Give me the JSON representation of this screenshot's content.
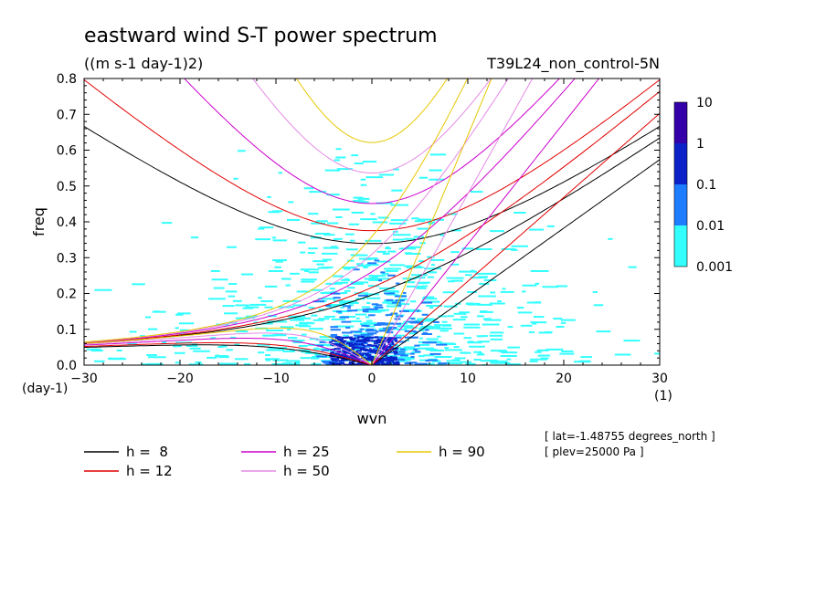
{
  "chart_data": {
    "type": "heatmap",
    "title": "eastward wind S-T power spectrum",
    "subtitle": "((m s-1 day-1)2)",
    "run_label": "T39L24_non_control-5N",
    "xlabel": "wvn",
    "ylabel": "freq",
    "x_unit": "(1)",
    "y_unit": "(day-1)",
    "xlim": [
      -30,
      30
    ],
    "ylim": [
      0,
      0.8
    ],
    "xticks": [
      -30,
      -20,
      -10,
      0,
      10,
      20,
      30
    ],
    "yticks": [
      0.0,
      0.1,
      0.2,
      0.3,
      0.4,
      0.5,
      0.6,
      0.7,
      0.8
    ],
    "ytick_labels": [
      "0.0",
      "0.1",
      "0.2",
      "0.3",
      "0.4",
      "0.5",
      "0.6",
      "0.7",
      "0.8"
    ],
    "colorbar": {
      "levels": [
        "0.001",
        "0.01",
        "0.1",
        "1",
        "10"
      ],
      "colors": [
        "#33ffff",
        "#1e7cff",
        "#0b22c8",
        "#3300aa"
      ]
    },
    "power_fields": [
      {
        "wvn_range": [
          -28,
          22
        ],
        "freq_range": [
          0.0,
          0.6
        ],
        "level": "0.001-0.01"
      },
      {
        "wvn_range": [
          -6,
          6
        ],
        "freq_range": [
          0.0,
          0.3
        ],
        "level": "0.01-0.1"
      },
      {
        "wvn_range": [
          -4,
          2
        ],
        "freq_range": [
          0.0,
          0.08
        ],
        "level": "0.1-1"
      }
    ],
    "dispersion_curves": [
      {
        "name": "h =  8",
        "color": "#000000"
      },
      {
        "name": "h = 12",
        "color": "#e00000"
      },
      {
        "name": "h = 25",
        "color": "#cc00cc"
      },
      {
        "name": "h = 50",
        "color": "#e58ae5"
      },
      {
        "name": "h = 90",
        "color": "#e6c800"
      }
    ],
    "annotations": [
      "[ lat=-1.48755 degrees_north ]",
      "[ plev=25000 Pa ]"
    ]
  }
}
